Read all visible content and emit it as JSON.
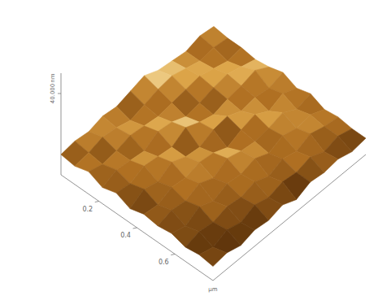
{
  "chart_data": {
    "type": "surface",
    "x_label": "µm",
    "z_label": "nm",
    "xlim": [
      0,
      0.8
    ],
    "xticks": [
      0.2,
      0.4,
      0.6
    ],
    "ylim": [
      0,
      0.8
    ],
    "zlim": [
      0,
      50
    ],
    "zticks": [
      {
        "value": 40,
        "label": "40.000"
      }
    ],
    "heights": [
      [
        10,
        11,
        10,
        12,
        11,
        13,
        15,
        12,
        11,
        10,
        12,
        11
      ],
      [
        9,
        10,
        12,
        11,
        9,
        11,
        13,
        14,
        12,
        10,
        11,
        10
      ],
      [
        11,
        9,
        10,
        12,
        11,
        10,
        11,
        12,
        13,
        11,
        9,
        10
      ],
      [
        8,
        11,
        10,
        9,
        13,
        12,
        9,
        10,
        12,
        13,
        11,
        9
      ],
      [
        10,
        9,
        12,
        11,
        10,
        14,
        11,
        9,
        11,
        12,
        14,
        10
      ],
      [
        7,
        11,
        9,
        13,
        10,
        9,
        12,
        13,
        10,
        11,
        10,
        12
      ],
      [
        9,
        8,
        11,
        10,
        12,
        11,
        8,
        11,
        13,
        9,
        12,
        9
      ],
      [
        8,
        10,
        9,
        12,
        9,
        13,
        11,
        10,
        11,
        13,
        9,
        11
      ],
      [
        9,
        7,
        11,
        8,
        11,
        10,
        12,
        9,
        12,
        10,
        11,
        8
      ],
      [
        7,
        9,
        8,
        10,
        9,
        11,
        8,
        11,
        9,
        12,
        10,
        9
      ],
      [
        8,
        6,
        9,
        7,
        10,
        8,
        10,
        9,
        11,
        8,
        10,
        8
      ],
      [
        7,
        8,
        6,
        8,
        7,
        9,
        6,
        9,
        8,
        9,
        7,
        8
      ]
    ]
  }
}
